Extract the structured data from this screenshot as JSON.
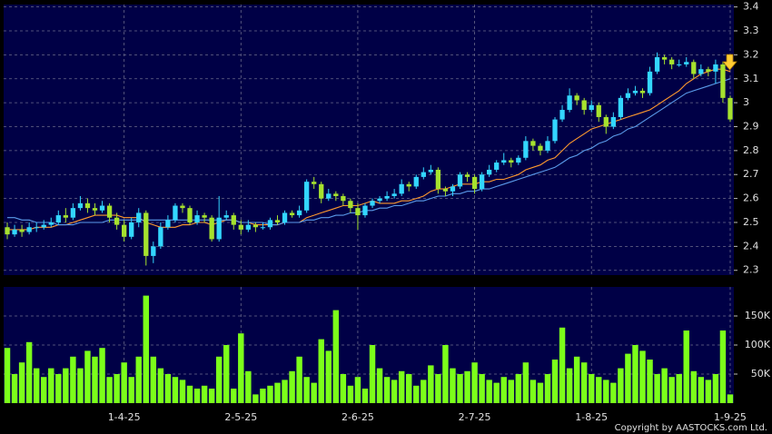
{
  "chart_data": {
    "type": "candlestick",
    "categories": [
      null,
      null,
      null,
      null,
      null,
      null,
      null,
      null,
      null,
      null,
      null,
      null,
      null,
      null,
      null,
      null,
      "1-4-25",
      null,
      null,
      null,
      null,
      null,
      null,
      null,
      null,
      null,
      null,
      null,
      null,
      null,
      null,
      null,
      "2-5-25",
      null,
      null,
      null,
      null,
      null,
      null,
      null,
      null,
      null,
      null,
      null,
      null,
      null,
      null,
      null,
      "2-6-25",
      null,
      null,
      null,
      null,
      null,
      null,
      null,
      null,
      null,
      null,
      null,
      null,
      null,
      null,
      null,
      "2-7-25",
      null,
      null,
      null,
      null,
      null,
      null,
      null,
      null,
      null,
      null,
      null,
      null,
      null,
      null,
      null,
      "1-8-25",
      null,
      null,
      null,
      null,
      null,
      null,
      null,
      null,
      null,
      null,
      null,
      null,
      null,
      null,
      null,
      null,
      null,
      null,
      "1-9-25"
    ],
    "open": [
      2.48,
      2.45,
      2.47,
      2.46,
      2.48,
      2.48,
      2.49,
      2.5,
      2.53,
      2.52,
      2.56,
      2.58,
      2.56,
      2.55,
      2.57,
      2.52,
      2.49,
      2.44,
      2.5,
      2.54,
      2.36,
      2.4,
      2.48,
      2.51,
      2.57,
      2.56,
      2.5,
      2.53,
      2.52,
      2.43,
      2.52,
      2.53,
      2.49,
      2.47,
      2.49,
      2.48,
      2.48,
      2.51,
      2.5,
      2.54,
      2.53,
      2.55,
      2.67,
      2.66,
      2.6,
      2.62,
      2.61,
      2.59,
      2.56,
      2.53,
      2.57,
      2.59,
      2.6,
      2.61,
      2.62,
      2.66,
      2.65,
      2.69,
      2.71,
      2.72,
      2.64,
      2.63,
      2.65,
      2.7,
      2.69,
      2.64,
      2.7,
      2.72,
      2.75,
      2.76,
      2.75,
      2.77,
      2.84,
      2.82,
      2.8,
      2.84,
      2.93,
      2.97,
      3.03,
      3.01,
      2.97,
      2.99,
      2.94,
      2.9,
      2.94,
      3.02,
      3.04,
      3.05,
      3.04,
      3.13,
      3.19,
      3.18,
      3.16,
      3.16,
      3.17,
      3.12,
      3.14,
      3.13,
      3.16,
      3.02
    ],
    "high": [
      2.5,
      2.49,
      2.49,
      2.5,
      2.5,
      2.51,
      2.52,
      2.55,
      2.56,
      2.58,
      2.61,
      2.6,
      2.58,
      2.59,
      2.58,
      2.54,
      2.51,
      2.52,
      2.56,
      2.55,
      2.42,
      2.5,
      2.53,
      2.58,
      2.58,
      2.57,
      2.55,
      2.54,
      2.53,
      2.61,
      2.55,
      2.54,
      2.51,
      2.51,
      2.5,
      2.5,
      2.52,
      2.53,
      2.55,
      2.55,
      2.57,
      2.68,
      2.69,
      2.67,
      2.64,
      2.63,
      2.62,
      2.6,
      2.58,
      2.58,
      2.6,
      2.61,
      2.63,
      2.64,
      2.68,
      2.67,
      2.7,
      2.73,
      2.74,
      2.73,
      2.65,
      2.66,
      2.71,
      2.71,
      2.7,
      2.71,
      2.74,
      2.76,
      2.79,
      2.77,
      2.78,
      2.86,
      2.85,
      2.83,
      2.86,
      2.94,
      2.99,
      3.06,
      3.04,
      3.02,
      3.01,
      3.0,
      2.95,
      2.96,
      3.03,
      3.06,
      3.07,
      3.06,
      3.15,
      3.21,
      3.2,
      3.19,
      3.18,
      3.19,
      3.18,
      3.16,
      3.15,
      3.18,
      3.17,
      3.03
    ],
    "low": [
      2.43,
      2.44,
      2.44,
      2.45,
      2.46,
      2.47,
      2.48,
      2.49,
      2.5,
      2.51,
      2.55,
      2.54,
      2.53,
      2.54,
      2.5,
      2.47,
      2.42,
      2.43,
      2.48,
      2.32,
      2.33,
      2.39,
      2.47,
      2.5,
      2.54,
      2.49,
      2.49,
      2.5,
      2.42,
      2.42,
      2.51,
      2.47,
      2.45,
      2.46,
      2.46,
      2.47,
      2.47,
      2.49,
      2.49,
      2.52,
      2.52,
      2.54,
      2.64,
      2.58,
      2.59,
      2.59,
      2.57,
      2.54,
      2.47,
      2.52,
      2.56,
      2.58,
      2.59,
      2.6,
      2.61,
      2.63,
      2.64,
      2.68,
      2.7,
      2.62,
      2.61,
      2.61,
      2.64,
      2.67,
      2.62,
      2.63,
      2.69,
      2.71,
      2.74,
      2.73,
      2.74,
      2.76,
      2.8,
      2.78,
      2.79,
      2.83,
      2.92,
      2.96,
      2.99,
      2.95,
      2.96,
      2.92,
      2.87,
      2.89,
      2.93,
      3.01,
      3.03,
      3.02,
      3.03,
      3.12,
      3.16,
      3.14,
      3.15,
      3.15,
      3.1,
      3.11,
      3.11,
      3.08,
      3.0,
      2.92
    ],
    "close": [
      2.45,
      2.47,
      2.46,
      2.48,
      2.48,
      2.49,
      2.5,
      2.53,
      2.52,
      2.56,
      2.58,
      2.56,
      2.55,
      2.57,
      2.52,
      2.49,
      2.44,
      2.5,
      2.54,
      2.36,
      2.4,
      2.48,
      2.51,
      2.57,
      2.56,
      2.5,
      2.53,
      2.52,
      2.43,
      2.52,
      2.53,
      2.49,
      2.47,
      2.49,
      2.48,
      2.48,
      2.51,
      2.5,
      2.54,
      2.53,
      2.55,
      2.67,
      2.66,
      2.6,
      2.62,
      2.61,
      2.59,
      2.56,
      2.53,
      2.57,
      2.59,
      2.6,
      2.61,
      2.62,
      2.66,
      2.65,
      2.69,
      2.71,
      2.72,
      2.64,
      2.63,
      2.65,
      2.7,
      2.69,
      2.64,
      2.7,
      2.72,
      2.75,
      2.76,
      2.75,
      2.77,
      2.84,
      2.82,
      2.8,
      2.84,
      2.93,
      2.97,
      3.03,
      3.01,
      2.97,
      2.99,
      2.94,
      2.9,
      2.94,
      3.02,
      3.04,
      3.05,
      3.04,
      3.13,
      3.19,
      3.18,
      3.16,
      3.16,
      3.17,
      3.12,
      3.14,
      3.13,
      3.16,
      3.02,
      2.93
    ],
    "up_color": "#33d6ff",
    "down_color": "#a6e22e",
    "moving_averages": [
      {
        "color": "#ff9a2e",
        "values": [
          2.47,
          2.47,
          2.47,
          2.47,
          2.48,
          2.48,
          2.48,
          2.49,
          2.49,
          2.5,
          2.51,
          2.52,
          2.53,
          2.53,
          2.53,
          2.53,
          2.52,
          2.52,
          2.52,
          2.5,
          2.49,
          2.48,
          2.48,
          2.48,
          2.49,
          2.49,
          2.5,
          2.5,
          2.49,
          2.5,
          2.51,
          2.51,
          2.5,
          2.5,
          2.49,
          2.49,
          2.49,
          2.49,
          2.5,
          2.5,
          2.5,
          2.52,
          2.53,
          2.54,
          2.55,
          2.56,
          2.57,
          2.57,
          2.57,
          2.58,
          2.59,
          2.58,
          2.58,
          2.58,
          2.59,
          2.59,
          2.6,
          2.61,
          2.63,
          2.64,
          2.64,
          2.65,
          2.66,
          2.66,
          2.66,
          2.67,
          2.67,
          2.68,
          2.68,
          2.69,
          2.7,
          2.72,
          2.73,
          2.74,
          2.76,
          2.77,
          2.8,
          2.83,
          2.85,
          2.87,
          2.89,
          2.9,
          2.91,
          2.92,
          2.93,
          2.94,
          2.95,
          2.96,
          2.97,
          2.99,
          3.01,
          3.03,
          3.05,
          3.08,
          3.1,
          3.12,
          3.13,
          3.14,
          3.14,
          3.13
        ]
      },
      {
        "color": "#5b9bea",
        "values": [
          2.52,
          2.52,
          2.51,
          2.51,
          2.5,
          2.5,
          2.5,
          2.49,
          2.49,
          2.49,
          2.5,
          2.5,
          2.5,
          2.5,
          2.51,
          2.51,
          2.51,
          2.51,
          2.51,
          2.51,
          2.51,
          2.51,
          2.51,
          2.51,
          2.51,
          2.51,
          2.51,
          2.51,
          2.51,
          2.51,
          2.51,
          2.51,
          2.5,
          2.5,
          2.5,
          2.5,
          2.49,
          2.49,
          2.5,
          2.5,
          2.5,
          2.51,
          2.51,
          2.52,
          2.52,
          2.53,
          2.53,
          2.54,
          2.54,
          2.55,
          2.55,
          2.56,
          2.56,
          2.57,
          2.57,
          2.58,
          2.59,
          2.59,
          2.6,
          2.61,
          2.61,
          2.62,
          2.62,
          2.63,
          2.63,
          2.64,
          2.64,
          2.65,
          2.66,
          2.67,
          2.68,
          2.69,
          2.7,
          2.71,
          2.72,
          2.73,
          2.75,
          2.77,
          2.78,
          2.8,
          2.81,
          2.83,
          2.84,
          2.86,
          2.87,
          2.89,
          2.9,
          2.92,
          2.94,
          2.96,
          2.98,
          3.0,
          3.02,
          3.04,
          3.05,
          3.06,
          3.07,
          3.08,
          3.09,
          3.1
        ]
      }
    ],
    "ylim": [
      2.28,
      3.41
    ],
    "yticks": [
      2.3,
      2.4,
      2.5,
      2.6,
      2.7,
      2.8,
      2.9,
      3,
      3.1,
      3.2,
      3.3,
      3.4
    ],
    "grid": true,
    "volume": {
      "color": "#7cff1a",
      "values": [
        95000,
        50000,
        70000,
        105000,
        60000,
        45000,
        60000,
        50000,
        60000,
        80000,
        60000,
        90000,
        80000,
        95000,
        45000,
        50000,
        70000,
        45000,
        80000,
        185000,
        80000,
        60000,
        50000,
        45000,
        40000,
        30000,
        25000,
        30000,
        25000,
        80000,
        100000,
        25000,
        120000,
        55000,
        15000,
        25000,
        30000,
        35000,
        40000,
        55000,
        80000,
        45000,
        35000,
        110000,
        90000,
        160000,
        50000,
        30000,
        45000,
        25000,
        100000,
        60000,
        45000,
        40000,
        55000,
        50000,
        30000,
        40000,
        65000,
        50000,
        100000,
        60000,
        50000,
        55000,
        70000,
        50000,
        40000,
        35000,
        45000,
        40000,
        50000,
        70000,
        40000,
        35000,
        50000,
        75000,
        130000,
        60000,
        80000,
        70000,
        50000,
        45000,
        40000,
        35000,
        60000,
        85000,
        100000,
        90000,
        75000,
        50000,
        60000,
        45000,
        50000,
        125000,
        55000,
        45000,
        40000,
        50000,
        125000,
        15000
      ],
      "ylim": [
        0,
        200000
      ],
      "yticks": [
        {
          "value": 50000,
          "label": "50K"
        },
        {
          "value": 100000,
          "label": "100K"
        },
        {
          "value": 150000,
          "label": "150K"
        }
      ]
    },
    "copyright": "Copyright by AASTOCKS.com Ltd."
  }
}
